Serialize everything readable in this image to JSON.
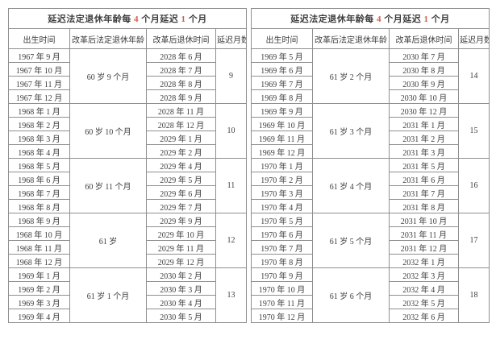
{
  "colors": {
    "accent_number": "#d0604a",
    "border": "#8f8f8f",
    "text": "#3d3d3d",
    "background": "#ffffff"
  },
  "title_segments": [
    {
      "text": "延迟法定退休年龄每 ",
      "highlight": false
    },
    {
      "text": "4",
      "highlight": true
    },
    {
      "text": " 个月延迟 ",
      "highlight": false
    },
    {
      "text": "1",
      "highlight": true
    },
    {
      "text": " 个月",
      "highlight": false
    }
  ],
  "columns": [
    "出生时间",
    "改革后法定退休年龄",
    "改革后退休时间",
    "延迟月数"
  ],
  "tables": [
    {
      "groups": [
        {
          "birth_months": [
            "1967 年 9 月",
            "1967 年 10 月",
            "1967 年 11 月",
            "1967 年 12 月"
          ],
          "retirement_age": "60 岁 9 个月",
          "retirement_months": [
            "2028 年 6 月",
            "2028 年 7 月",
            "2028 年 8 月",
            "2028 年 9 月"
          ],
          "delay_months": "9"
        },
        {
          "birth_months": [
            "1968 年 1 月",
            "1968 年 2 月",
            "1968 年 3 月",
            "1968 年 4 月"
          ],
          "retirement_age": "60 岁 10 个月",
          "retirement_months": [
            "2028 年 11 月",
            "2028 年 12 月",
            "2029 年 1 月",
            "2029 年 2 月"
          ],
          "delay_months": "10"
        },
        {
          "birth_months": [
            "1968 年 5 月",
            "1968 年 6 月",
            "1968 年 7 月",
            "1968 年 8 月"
          ],
          "retirement_age": "60 岁 11 个月",
          "retirement_months": [
            "2029 年 4 月",
            "2029 年 5 月",
            "2029 年 6 月",
            "2029 年 7 月"
          ],
          "delay_months": "11"
        },
        {
          "birth_months": [
            "1968 年 9 月",
            "1968 年 10 月",
            "1968 年 11 月",
            "1968 年 12 月"
          ],
          "retirement_age": "61 岁",
          "retirement_months": [
            "2029 年 9 月",
            "2029 年 10 月",
            "2029 年 11 月",
            "2029 年 12 月"
          ],
          "delay_months": "12"
        },
        {
          "birth_months": [
            "1969 年 1 月",
            "1969 年 2 月",
            "1969 年 3 月",
            "1969 年 4 月"
          ],
          "retirement_age": "61 岁 1 个月",
          "retirement_months": [
            "2030 年 2 月",
            "2030 年 3 月",
            "2030 年 4 月",
            "2030 年 5 月"
          ],
          "delay_months": "13"
        }
      ]
    },
    {
      "groups": [
        {
          "birth_months": [
            "1969 年 5 月",
            "1969 年 6 月",
            "1969 年 7 月",
            "1969 年 8 月"
          ],
          "retirement_age": "61 岁 2 个月",
          "retirement_months": [
            "2030 年 7 月",
            "2030 年 8 月",
            "2030 年 9 月",
            "2030 年 10 月"
          ],
          "delay_months": "14"
        },
        {
          "birth_months": [
            "1969 年 9 月",
            "1969 年 10 月",
            "1969 年 11 月",
            "1969 年 12 月"
          ],
          "retirement_age": "61 岁 3 个月",
          "retirement_months": [
            "2030 年 12 月",
            "2031 年 1 月",
            "2031 年 2 月",
            "2031 年 3 月"
          ],
          "delay_months": "15"
        },
        {
          "birth_months": [
            "1970 年 1 月",
            "1970 年 2 月",
            "1970 年 3 月",
            "1970 年 4 月"
          ],
          "retirement_age": "61 岁 4 个月",
          "retirement_months": [
            "2031 年 5 月",
            "2031 年 6 月",
            "2031 年 7 月",
            "2031 年 8 月"
          ],
          "delay_months": "16"
        },
        {
          "birth_months": [
            "1970 年 5 月",
            "1970 年 6 月",
            "1970 年 7 月",
            "1970 年 8 月"
          ],
          "retirement_age": "61 岁 5 个月",
          "retirement_months": [
            "2031 年 10 月",
            "2031 年 11 月",
            "2031 年 12 月",
            "2032 年 1 月"
          ],
          "delay_months": "17"
        },
        {
          "birth_months": [
            "1970 年 9 月",
            "1970 年 10 月",
            "1970 年 11 月",
            "1970 年 12 月"
          ],
          "retirement_age": "61 岁 6 个月",
          "retirement_months": [
            "2032 年 3 月",
            "2032 年 4 月",
            "2032 年 5 月",
            "2032 年 6 月"
          ],
          "delay_months": "18"
        }
      ]
    }
  ]
}
